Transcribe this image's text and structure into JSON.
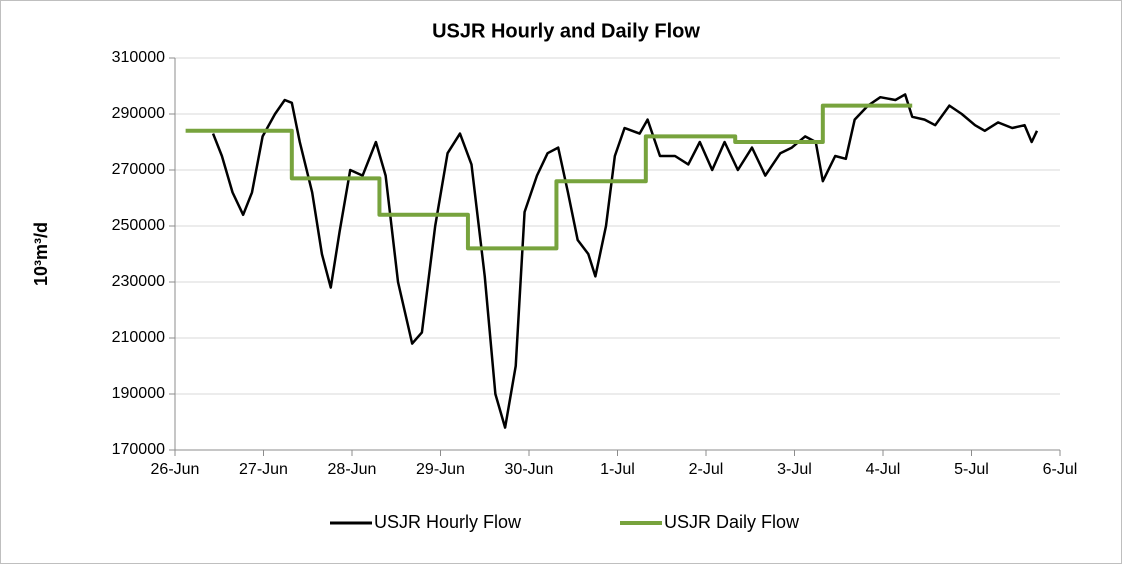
{
  "chart_data": {
    "type": "line",
    "title": "USJR Hourly and Daily Flow",
    "ylabel": "10³m³/d",
    "xlim": [
      0,
      10
    ],
    "xticks": [
      {
        "value": 0,
        "label": "26-Jun"
      },
      {
        "value": 1,
        "label": "27-Jun"
      },
      {
        "value": 2,
        "label": "28-Jun"
      },
      {
        "value": 3,
        "label": "29-Jun"
      },
      {
        "value": 4,
        "label": "30-Jun"
      },
      {
        "value": 5,
        "label": "1-Jul"
      },
      {
        "value": 6,
        "label": "2-Jul"
      },
      {
        "value": 7,
        "label": "3-Jul"
      },
      {
        "value": 8,
        "label": "4-Jul"
      },
      {
        "value": 9,
        "label": "5-Jul"
      },
      {
        "value": 10,
        "label": "6-Jul"
      }
    ],
    "ylim": [
      170000,
      310000
    ],
    "yticks": [
      170000,
      190000,
      210000,
      230000,
      250000,
      270000,
      290000,
      310000
    ],
    "grid": true,
    "legend": "bottom",
    "series": [
      {
        "name": "USJR Hourly Flow",
        "color": "#000000",
        "x": [
          0.43,
          0.53,
          0.65,
          0.77,
          0.87,
          0.99,
          1.13,
          1.24,
          1.32,
          1.41,
          1.55,
          1.66,
          1.76,
          1.86,
          1.98,
          2.12,
          2.27,
          2.38,
          2.52,
          2.68,
          2.79,
          2.94,
          3.08,
          3.22,
          3.35,
          3.5,
          3.62,
          3.73,
          3.85,
          3.95,
          4.09,
          4.21,
          4.33,
          4.44,
          4.55,
          4.67,
          4.75,
          4.87,
          4.97,
          5.08,
          5.25,
          5.34,
          5.48,
          5.65,
          5.8,
          5.93,
          6.07,
          6.21,
          6.36,
          6.52,
          6.67,
          6.84,
          6.97,
          7.12,
          7.24,
          7.32,
          7.46,
          7.58,
          7.68,
          7.83,
          7.97,
          8.14,
          8.25,
          8.33,
          8.47,
          8.59,
          8.75,
          8.89,
          9.04,
          9.15,
          9.3,
          9.46,
          9.6,
          9.68,
          9.74
        ],
        "values": [
          283000,
          275000,
          262000,
          254000,
          262000,
          282000,
          290000,
          295000,
          294000,
          280000,
          262000,
          240000,
          228000,
          248000,
          270000,
          268000,
          280000,
          268000,
          230000,
          208000,
          212000,
          250000,
          276000,
          283000,
          272000,
          232000,
          190000,
          178000,
          200000,
          255000,
          268000,
          276000,
          278000,
          262000,
          245000,
          240000,
          232000,
          250000,
          275000,
          285000,
          283000,
          288000,
          275000,
          275000,
          272000,
          280000,
          270000,
          280000,
          270000,
          278000,
          268000,
          276000,
          278000,
          282000,
          280000,
          266000,
          275000,
          274000,
          288000,
          293000,
          296000,
          295000,
          297000,
          289000,
          288000,
          286000,
          293000,
          290000,
          286000,
          284000,
          287000,
          285000,
          286000,
          280000,
          284000
        ]
      },
      {
        "name": "USJR Daily Flow",
        "color": "#77a33d",
        "step": "post",
        "x": [
          0.12,
          1.32,
          2.31,
          3.31,
          4.31,
          5.32,
          6.33,
          7.32,
          8.33
        ],
        "values": [
          284000,
          267000,
          254000,
          242000,
          266000,
          282000,
          280000,
          293000,
          293000
        ]
      }
    ]
  }
}
